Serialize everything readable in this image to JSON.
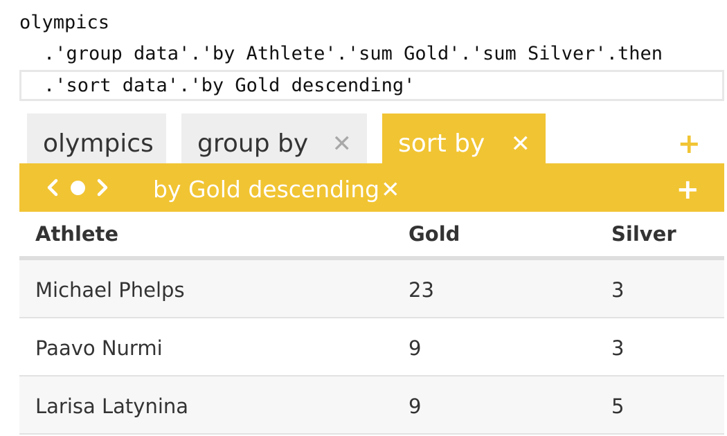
{
  "code": {
    "line1": "olympics",
    "line2": ".'group data'.'by Athlete'.'sum Gold'.'sum Silver'.then",
    "line3": ".'sort data'.'by Gold descending'"
  },
  "tabs": [
    {
      "label": "olympics"
    },
    {
      "label": "group by",
      "close": "✕"
    },
    {
      "label": "sort by",
      "close": "✕",
      "active": true
    }
  ],
  "tabs_add": "+",
  "step_bar": {
    "prev_icon": "‹",
    "next_icon": "›",
    "label": "by Gold descending",
    "close": "✕",
    "add": "+"
  },
  "table": {
    "headers": [
      "Athlete",
      "Gold",
      "Silver"
    ],
    "rows": [
      [
        "Michael Phelps",
        "23",
        "3"
      ],
      [
        "Paavo Nurmi",
        "9",
        "3"
      ],
      [
        "Larisa Latynina",
        "9",
        "5"
      ]
    ]
  },
  "colors": {
    "accent": "#f1c433",
    "tab_inactive": "#eeeeee",
    "row_alt": "#f7f7f7"
  }
}
